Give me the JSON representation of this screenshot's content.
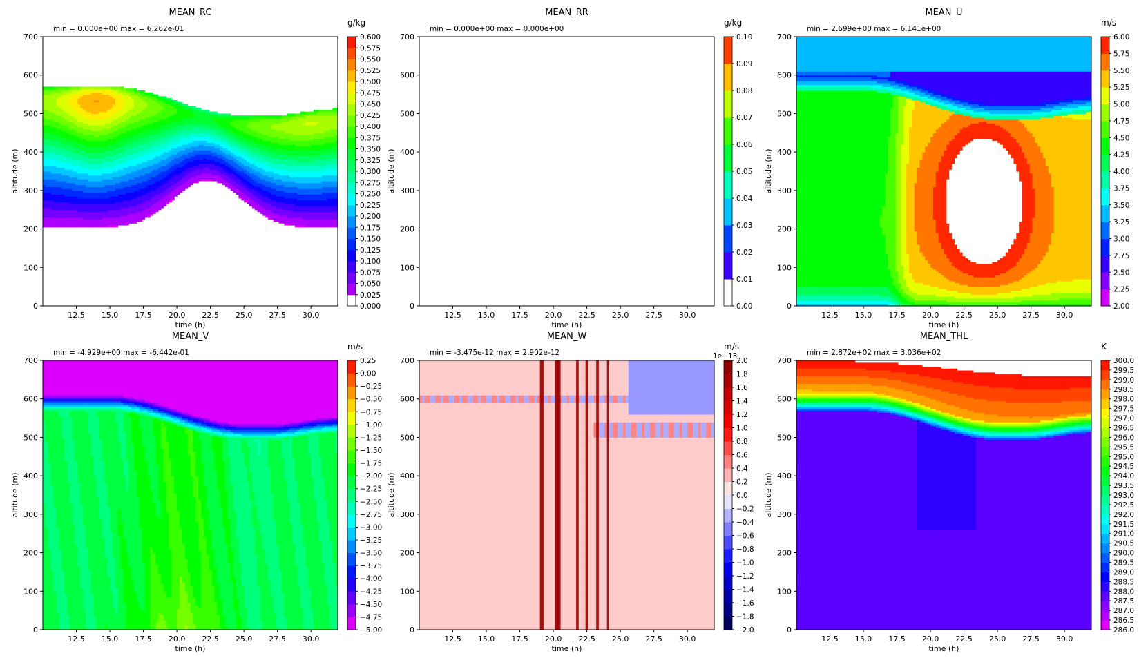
{
  "chart_data": [
    {
      "type": "heatmap",
      "title": "MEAN_RC",
      "stats": "min = 0.000e+00  max = 6.262e-01",
      "xlabel": "time (h)",
      "ylabel": "altitude (m)",
      "xlim": [
        10.0,
        32.0
      ],
      "ylim": [
        0,
        700
      ],
      "xticks": [
        "12.5",
        "15.0",
        "17.5",
        "20.0",
        "22.5",
        "25.0",
        "27.5",
        "30.0"
      ],
      "yticks": [
        "0",
        "100",
        "200",
        "300",
        "400",
        "500",
        "600",
        "700"
      ],
      "colorbar": {
        "unit": "g/kg",
        "colormap": "gist_rainbow_r",
        "min": 0.0,
        "max": 0.6,
        "ticks": [
          "0.000",
          "0.025",
          "0.050",
          "0.075",
          "0.100",
          "0.125",
          "0.150",
          "0.175",
          "0.200",
          "0.225",
          "0.250",
          "0.275",
          "0.300",
          "0.325",
          "0.350",
          "0.375",
          "0.400",
          "0.425",
          "0.450",
          "0.475",
          "0.500",
          "0.525",
          "0.550",
          "0.575",
          "0.600"
        ],
        "multiplier": ""
      },
      "field": {
        "kind": "cloud",
        "values_min": 0.0,
        "values_max": 0.6262
      }
    },
    {
      "type": "heatmap",
      "title": "MEAN_RR",
      "stats": "min = 0.000e+00  max = 0.000e+00",
      "xlabel": "time (h)",
      "ylabel": "altitude (m)",
      "xlim": [
        10.0,
        32.0
      ],
      "ylim": [
        0,
        700
      ],
      "xticks": [
        "12.5",
        "15.0",
        "17.5",
        "20.0",
        "22.5",
        "25.0",
        "27.5",
        "30.0"
      ],
      "yticks": [
        "0",
        "100",
        "200",
        "300",
        "400",
        "500",
        "600",
        "700"
      ],
      "colorbar": {
        "unit": "g/kg",
        "colormap": "gist_rainbow_r",
        "min": 0.0,
        "max": 0.1,
        "ticks": [
          "0.00",
          "0.01",
          "0.02",
          "0.03",
          "0.04",
          "0.05",
          "0.06",
          "0.07",
          "0.08",
          "0.09",
          "0.10"
        ],
        "multiplier": ""
      },
      "field": {
        "kind": "empty",
        "values_min": 0.0,
        "values_max": 0.0
      }
    },
    {
      "type": "heatmap",
      "title": "MEAN_U",
      "stats": "min = 2.699e+00  max = 6.141e+00",
      "xlabel": "time (h)",
      "ylabel": "altitude (m)",
      "xlim": [
        10.0,
        32.0
      ],
      "ylim": [
        0,
        700
      ],
      "xticks": [
        "12.5",
        "15.0",
        "17.5",
        "20.0",
        "22.5",
        "25.0",
        "27.5",
        "30.0"
      ],
      "yticks": [
        "0",
        "100",
        "200",
        "300",
        "400",
        "500",
        "600",
        "700"
      ],
      "colorbar": {
        "unit": "m/s",
        "colormap": "gist_rainbow_r",
        "min": 2.0,
        "max": 6.0,
        "ticks": [
          "2.00",
          "2.25",
          "2.50",
          "2.75",
          "3.00",
          "3.25",
          "3.50",
          "3.75",
          "4.00",
          "4.25",
          "4.50",
          "4.75",
          "5.00",
          "5.25",
          "5.50",
          "5.75",
          "6.00"
        ],
        "multiplier": ""
      },
      "field": {
        "kind": "u",
        "values_min": 2.699,
        "values_max": 6.141
      }
    },
    {
      "type": "heatmap",
      "title": "MEAN_V",
      "stats": "min = -4.929e+00  max = -6.442e-01",
      "xlabel": "time (h)",
      "ylabel": "altitude (m)",
      "xlim": [
        10.0,
        32.0
      ],
      "ylim": [
        0,
        700
      ],
      "xticks": [
        "12.5",
        "15.0",
        "17.5",
        "20.0",
        "22.5",
        "25.0",
        "27.5",
        "30.0"
      ],
      "yticks": [
        "0",
        "100",
        "200",
        "300",
        "400",
        "500",
        "600",
        "700"
      ],
      "colorbar": {
        "unit": "m/s",
        "colormap": "gist_rainbow_r",
        "min": -5.0,
        "max": 0.25,
        "ticks": [
          "−5.00",
          "−4.75",
          "−4.50",
          "−4.25",
          "−4.00",
          "−3.75",
          "−3.50",
          "−3.25",
          "−3.00",
          "−2.75",
          "−2.50",
          "−2.25",
          "−2.00",
          "−1.75",
          "−1.50",
          "−1.25",
          "−1.00",
          "−0.75",
          "−0.50",
          "−0.25",
          "0.00",
          "0.25"
        ],
        "multiplier": ""
      },
      "field": {
        "kind": "v",
        "values_min": -4.929,
        "values_max": -0.6442
      }
    },
    {
      "type": "heatmap",
      "title": "MEAN_W",
      "stats": "min = -3.475e-12  max = 2.902e-12",
      "xlabel": "time (h)",
      "ylabel": "altitude (m)",
      "xlim": [
        10.0,
        32.0
      ],
      "ylim": [
        0,
        700
      ],
      "xticks": [
        "12.5",
        "15.0",
        "17.5",
        "20.0",
        "22.5",
        "25.0",
        "27.5",
        "30.0"
      ],
      "yticks": [
        "0",
        "100",
        "200",
        "300",
        "400",
        "500",
        "600",
        "700"
      ],
      "colorbar": {
        "unit": "m/s",
        "colormap": "seismic",
        "min": -2.0,
        "max": 2.0,
        "ticks": [
          "−2.0",
          "−1.8",
          "−1.6",
          "−1.4",
          "−1.2",
          "−1.0",
          "−0.8",
          "−0.6",
          "−0.4",
          "−0.2",
          "0.0",
          "0.2",
          "0.4",
          "0.6",
          "0.8",
          "1.0",
          "1.2",
          "1.4",
          "1.6",
          "1.8",
          "2.0"
        ],
        "multiplier": "1e−13"
      },
      "field": {
        "kind": "w",
        "values_min": -3.475e-12,
        "values_max": 2.902e-12
      }
    },
    {
      "type": "heatmap",
      "title": "MEAN_THL",
      "stats": "min = 2.872e+02  max = 3.036e+02",
      "xlabel": "time (h)",
      "ylabel": "altitude (m)",
      "xlim": [
        10.0,
        32.0
      ],
      "ylim": [
        0,
        700
      ],
      "xticks": [
        "12.5",
        "15.0",
        "17.5",
        "20.0",
        "22.5",
        "25.0",
        "27.5",
        "30.0"
      ],
      "yticks": [
        "0",
        "100",
        "200",
        "300",
        "400",
        "500",
        "600",
        "700"
      ],
      "colorbar": {
        "unit": "K",
        "colormap": "gist_rainbow_r",
        "min": 286.0,
        "max": 300.0,
        "ticks": [
          "286.0",
          "286.5",
          "287.0",
          "287.5",
          "288.0",
          "288.5",
          "289.0",
          "289.5",
          "290.0",
          "290.5",
          "291.0",
          "291.5",
          "292.0",
          "292.5",
          "293.0",
          "293.5",
          "294.0",
          "294.5",
          "295.0",
          "295.5",
          "296.0",
          "296.5",
          "297.0",
          "297.5",
          "298.0",
          "298.5",
          "299.0",
          "299.5",
          "300.0"
        ],
        "multiplier": ""
      },
      "field": {
        "kind": "thl",
        "values_min": 287.2,
        "values_max": 303.6
      }
    }
  ]
}
